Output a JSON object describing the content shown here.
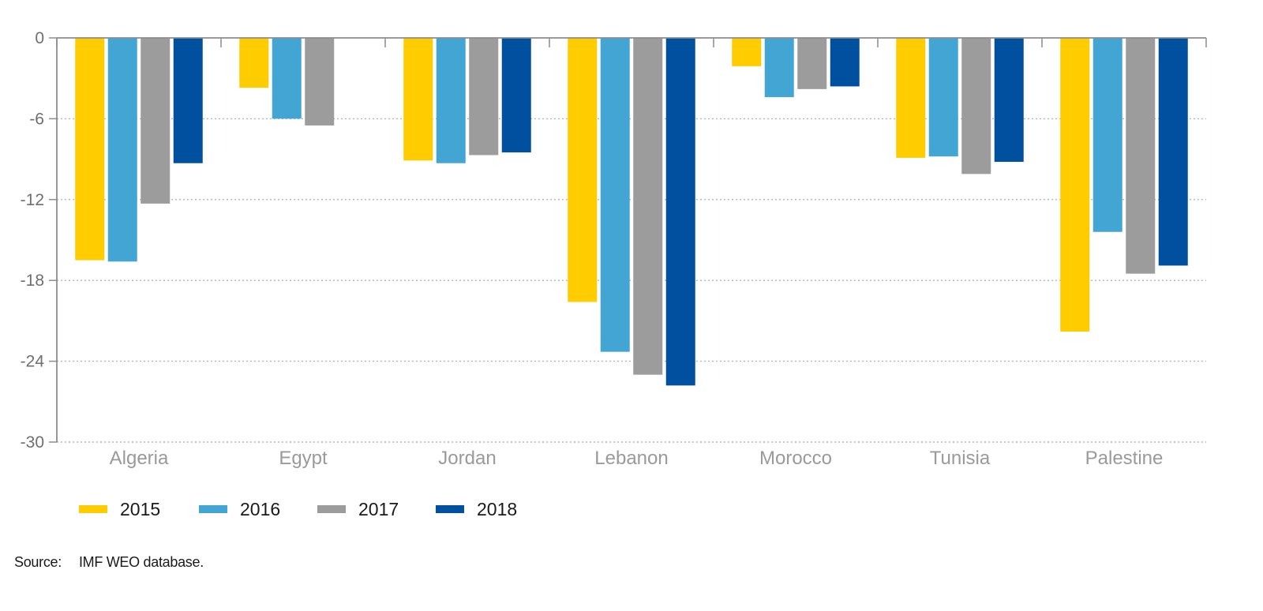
{
  "chart_data": {
    "type": "bar",
    "categories": [
      "Algeria",
      "Egypt",
      "Jordan",
      "Lebanon",
      "Morocco",
      "Tunisia",
      "Palestine"
    ],
    "series": [
      {
        "name": "2015",
        "color": "#ffcc00",
        "values": [
          -16.5,
          -3.7,
          -9.1,
          -19.6,
          -2.1,
          -8.9,
          -21.8
        ]
      },
      {
        "name": "2016",
        "color": "#42a5d3",
        "values": [
          -16.6,
          -6.0,
          -9.3,
          -23.3,
          -4.4,
          -8.8,
          -14.4
        ]
      },
      {
        "name": "2017",
        "color": "#9b9c9b",
        "values": [
          -12.3,
          -6.5,
          -8.7,
          -25.0,
          -3.8,
          -10.1,
          -17.5
        ]
      },
      {
        "name": "2018",
        "color": "#0050a0",
        "values": [
          -9.3,
          null,
          -8.5,
          -25.8,
          -3.6,
          -9.2,
          -16.9
        ]
      }
    ],
    "yticks": [
      0,
      -6,
      -12,
      -18,
      -24,
      -30
    ],
    "ylim": [
      -30,
      0
    ],
    "grid": true,
    "legend_position": "bottom-left"
  },
  "source": {
    "label": "Source:",
    "text": "IMF WEO database."
  }
}
